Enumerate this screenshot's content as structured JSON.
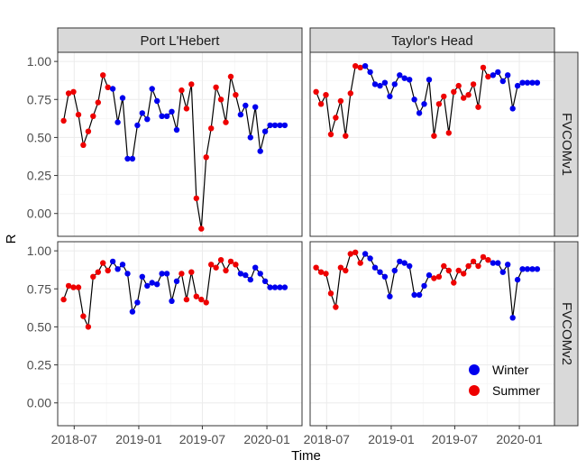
{
  "chart_data": {
    "type": "scatter",
    "xlabel": "Time",
    "ylabel": "R",
    "x_ticks": [
      "2018-07",
      "2019-01",
      "2019-07",
      "2020-01"
    ],
    "y_ticks": [
      "0.00",
      "0.25",
      "0.50",
      "0.75",
      "1.00"
    ],
    "xlim": [
      "2018-05-15",
      "2020-04-10"
    ],
    "ylim": [
      -0.15,
      1.06
    ],
    "facet_cols": [
      "Port L'Hebert",
      "Taylor's Head"
    ],
    "facet_rows": [
      "FVCOMv1",
      "FVCOMv2"
    ],
    "grid": true,
    "legend": {
      "position": "bottom-right-inside",
      "entries": [
        {
          "name": "Winter",
          "color": "#0000EE"
        },
        {
          "name": "Summer",
          "color": "#EE0000"
        }
      ]
    },
    "line_color": "#000000",
    "dates": [
      "2018-06-01",
      "2018-06-15",
      "2018-06-29",
      "2018-07-13",
      "2018-07-27",
      "2018-08-10",
      "2018-08-24",
      "2018-09-07",
      "2018-09-21",
      "2018-10-05",
      "2018-10-19",
      "2018-11-02",
      "2018-11-16",
      "2018-11-30",
      "2018-12-14",
      "2018-12-28",
      "2019-01-11",
      "2019-01-25",
      "2019-02-08",
      "2019-02-22",
      "2019-03-08",
      "2019-03-22",
      "2019-04-05",
      "2019-04-19",
      "2019-05-03",
      "2019-05-17",
      "2019-05-31",
      "2019-06-14",
      "2019-06-28",
      "2019-07-12",
      "2019-07-26",
      "2019-08-09",
      "2019-08-23",
      "2019-09-06",
      "2019-09-20",
      "2019-10-04",
      "2019-10-18",
      "2019-11-01",
      "2019-11-15",
      "2019-11-29",
      "2019-12-13",
      "2019-12-27",
      "2020-01-10",
      "2020-01-24",
      "2020-02-07",
      "2020-02-21"
    ],
    "seasons": [
      "S",
      "S",
      "S",
      "S",
      "S",
      "S",
      "S",
      "S",
      "S",
      "S",
      "W",
      "W",
      "W",
      "W",
      "W",
      "W",
      "W",
      "W",
      "W",
      "W",
      "W",
      "W",
      "W",
      "W",
      "S",
      "S",
      "S",
      "S",
      "S",
      "S",
      "S",
      "S",
      "S",
      "S",
      "S",
      "S",
      "W",
      "W",
      "W",
      "W",
      "W",
      "W",
      "W",
      "W",
      "W",
      "W"
    ],
    "panels": [
      {
        "col": "Port L'Hebert",
        "row": "FVCOMv1",
        "values": [
          0.61,
          0.79,
          0.8,
          0.65,
          0.45,
          0.54,
          0.64,
          0.73,
          0.91,
          0.83,
          0.82,
          0.6,
          0.76,
          0.36,
          0.36,
          0.58,
          0.66,
          0.62,
          0.82,
          0.74,
          0.64,
          0.64,
          0.67,
          0.55,
          0.81,
          0.69,
          0.85,
          0.1,
          -0.1,
          0.37,
          0.56,
          0.83,
          0.75,
          0.6,
          0.9,
          0.78,
          0.65,
          0.71,
          0.5,
          0.7,
          0.41,
          0.54,
          0.58,
          0.58,
          0.58,
          0.58
        ]
      },
      {
        "col": "Taylor's Head",
        "row": "FVCOMv1",
        "values": [
          0.8,
          0.72,
          0.78,
          0.52,
          0.63,
          0.74,
          0.51,
          0.79,
          0.97,
          0.96,
          0.97,
          0.93,
          0.85,
          0.84,
          0.86,
          0.77,
          0.85,
          0.91,
          0.89,
          0.88,
          0.75,
          0.66,
          0.72,
          0.88,
          0.51,
          0.72,
          0.77,
          0.53,
          0.8,
          0.84,
          0.76,
          0.78,
          0.85,
          0.7,
          0.96,
          0.9,
          0.91,
          0.93,
          0.87,
          0.91,
          0.69,
          0.84,
          0.86,
          0.86,
          0.86,
          0.86
        ]
      },
      {
        "col": "Port L'Hebert",
        "row": "FVCOMv2",
        "values": [
          0.68,
          0.77,
          0.76,
          0.76,
          0.57,
          0.5,
          0.83,
          0.86,
          0.92,
          0.87,
          0.93,
          0.88,
          0.91,
          0.85,
          0.6,
          0.66,
          0.83,
          0.77,
          0.79,
          0.78,
          0.85,
          0.85,
          0.67,
          0.8,
          0.85,
          0.68,
          0.86,
          0.7,
          0.68,
          0.66,
          0.91,
          0.89,
          0.94,
          0.87,
          0.93,
          0.91,
          0.85,
          0.84,
          0.81,
          0.89,
          0.85,
          0.8,
          0.76,
          0.76,
          0.76,
          0.76
        ]
      },
      {
        "col": "Taylor's Head",
        "row": "FVCOMv2",
        "values": [
          0.89,
          0.86,
          0.85,
          0.72,
          0.63,
          0.89,
          0.87,
          0.98,
          0.99,
          0.92,
          0.98,
          0.95,
          0.89,
          0.86,
          0.83,
          0.7,
          0.87,
          0.93,
          0.92,
          0.9,
          0.71,
          0.71,
          0.77,
          0.84,
          0.82,
          0.83,
          0.9,
          0.87,
          0.79,
          0.87,
          0.85,
          0.9,
          0.93,
          0.9,
          0.96,
          0.94,
          0.92,
          0.92,
          0.86,
          0.91,
          0.56,
          0.81,
          0.88,
          0.88,
          0.88,
          0.88
        ]
      }
    ]
  }
}
